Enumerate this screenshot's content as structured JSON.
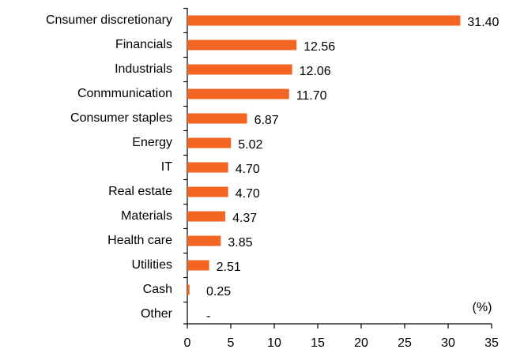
{
  "chart_data": {
    "type": "hbar",
    "categories": [
      "Cnsumer discretionary",
      "Financials",
      "Industrials",
      "Conmmunication",
      "Consumer staples",
      "Energy",
      "IT",
      "Real estate",
      "Materials",
      "Health care",
      "Utilities",
      "Cash",
      "Other"
    ],
    "values": [
      31.4,
      12.56,
      12.06,
      11.7,
      6.87,
      5.02,
      4.7,
      4.7,
      4.37,
      3.85,
      2.51,
      0.25,
      null
    ],
    "value_labels": [
      "31.40",
      "12.56",
      "12.06",
      "11.70",
      "6.87",
      "5.02",
      "4.70",
      "4.70",
      "4.37",
      "3.85",
      "2.51",
      "0.25",
      "-"
    ],
    "color": "#f26522",
    "xlim": [
      0,
      35
    ],
    "xticks": [
      0,
      5,
      10,
      15,
      20,
      25,
      30,
      35
    ],
    "annotation": "(%)"
  }
}
